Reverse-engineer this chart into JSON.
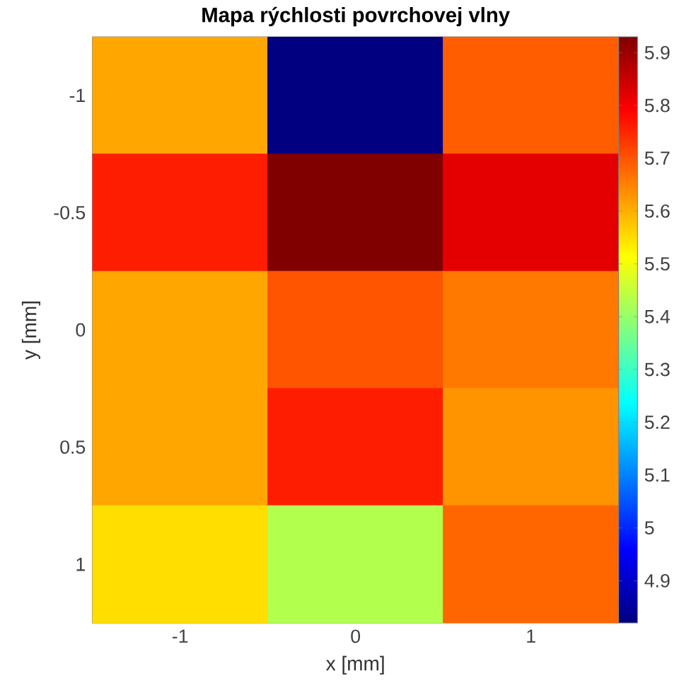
{
  "chart_data": {
    "type": "heatmap",
    "title": "Mapa rýchlosti povrchovej vlny",
    "xlabel": "x [mm]",
    "ylabel": "y [mm]",
    "categories": [
      "-1",
      "0",
      "1"
    ],
    "y_categories": [
      "-1",
      "-0.5",
      "0",
      "0.5",
      "1"
    ],
    "cells": [
      [
        5.61,
        4.82,
        5.69
      ],
      [
        5.76,
        5.93,
        5.82
      ],
      [
        5.61,
        5.7,
        5.66
      ],
      [
        5.61,
        5.76,
        5.63
      ],
      [
        5.55,
        5.43,
        5.68
      ]
    ],
    "clim": [
      4.82,
      5.93
    ],
    "cticks": [
      4.9,
      5,
      5.1,
      5.2,
      5.3,
      5.4,
      5.5,
      5.6,
      5.7,
      5.8,
      5.9
    ]
  }
}
